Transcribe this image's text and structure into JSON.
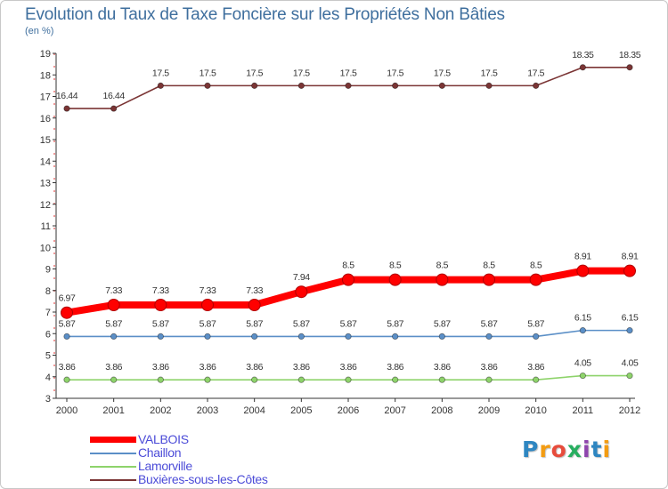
{
  "title": "Evolution du Taux de Taxe Foncière sur les Propriétés Non Bâties",
  "unit_label": "(en %)",
  "brand": {
    "letters": [
      "P",
      "r",
      "o",
      "x",
      "i",
      "t",
      "i"
    ],
    "colors": [
      "#2e86c1",
      "#f39c12",
      "#e74c3c",
      "#27ae60",
      "#8e44ad",
      "#2e86c1",
      "#f39c12"
    ]
  },
  "chart_data": {
    "type": "line",
    "title": "Evolution du Taux de Taxe Foncière sur les Propriétés Non Bâties",
    "ylabel": "(en %)",
    "xlabel": "",
    "categories": [
      "2000",
      "2001",
      "2002",
      "2003",
      "2004",
      "2005",
      "2006",
      "2007",
      "2008",
      "2009",
      "2010",
      "2011",
      "2012"
    ],
    "ylim": [
      3,
      19
    ],
    "yticks": [
      3,
      4,
      5,
      6,
      7,
      8,
      9,
      10,
      11,
      12,
      13,
      14,
      15,
      16,
      17,
      18,
      19
    ],
    "grid": false,
    "legend_position": "bottom-left",
    "series": [
      {
        "name": "VALBOIS",
        "color": "#ff0000",
        "style": "thick",
        "values": [
          6.97,
          7.33,
          7.33,
          7.33,
          7.33,
          7.94,
          8.5,
          8.5,
          8.5,
          8.5,
          8.5,
          8.91,
          8.91
        ],
        "labels": [
          "6.97",
          "7.33",
          "7.33",
          "7.33",
          "7.33",
          "7.94",
          "8.5",
          "8.5",
          "8.5",
          "8.5",
          "8.5",
          "8.91",
          "8.91"
        ]
      },
      {
        "name": "Chaillon",
        "color": "#5b8fc7",
        "style": "thin",
        "values": [
          5.87,
          5.87,
          5.87,
          5.87,
          5.87,
          5.87,
          5.87,
          5.87,
          5.87,
          5.87,
          5.87,
          6.15,
          6.15
        ],
        "labels": [
          "5.87",
          "5.87",
          "5.87",
          "5.87",
          "5.87",
          "5.87",
          "5.87",
          "5.87",
          "5.87",
          "5.87",
          "5.87",
          "6.15",
          "6.15"
        ]
      },
      {
        "name": "Lamorville",
        "color": "#8ed36b",
        "style": "thin",
        "values": [
          3.86,
          3.86,
          3.86,
          3.86,
          3.86,
          3.86,
          3.86,
          3.86,
          3.86,
          3.86,
          3.86,
          4.05,
          4.05
        ],
        "labels": [
          "3.86",
          "3.86",
          "3.86",
          "3.86",
          "3.86",
          "3.86",
          "3.86",
          "3.86",
          "3.86",
          "3.86",
          "3.86",
          "4.05",
          "4.05"
        ]
      },
      {
        "name": "Buxières-sous-les-Côtes",
        "color": "#7b3535",
        "style": "thin",
        "values": [
          16.44,
          16.44,
          17.5,
          17.5,
          17.5,
          17.5,
          17.5,
          17.5,
          17.5,
          17.5,
          17.5,
          18.35,
          18.35
        ],
        "labels": [
          "16.44",
          "16.44",
          "17.5",
          "17.5",
          "17.5",
          "17.5",
          "17.5",
          "17.5",
          "17.5",
          "17.5",
          "17.5",
          "18.35",
          "18.35"
        ]
      }
    ]
  }
}
